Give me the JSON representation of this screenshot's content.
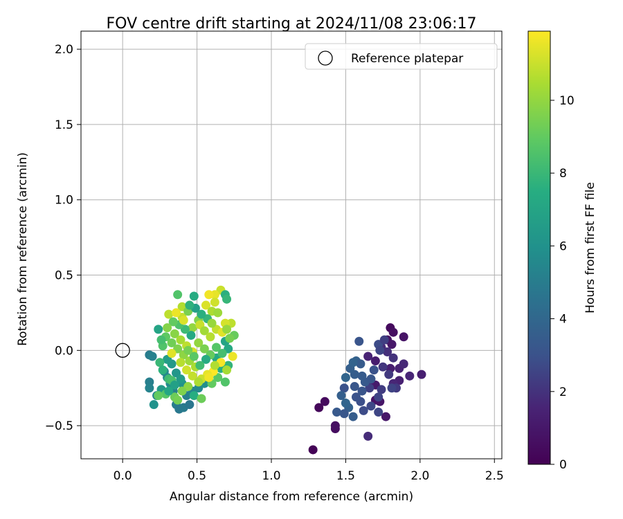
{
  "chart_data": {
    "type": "scatter",
    "title": "FOV centre drift starting at 2024/11/08 23:06:17",
    "xlabel": "Angular distance from reference (arcmin)",
    "ylabel": "Rotation from reference (arcmin)",
    "colorbar_label": "Hours from first FF file",
    "xlim": [
      -0.28,
      2.55
    ],
    "ylim": [
      -0.72,
      2.12
    ],
    "xticks": [
      0.0,
      0.5,
      1.0,
      1.5,
      2.0,
      2.5
    ],
    "xtick_labels": [
      "0.0",
      "0.5",
      "1.0",
      "1.5",
      "2.0",
      "2.5"
    ],
    "yticks": [
      -0.5,
      0.0,
      0.5,
      1.0,
      1.5,
      2.0
    ],
    "ytick_labels": [
      "−0.5",
      "0.0",
      "0.5",
      "1.0",
      "1.5",
      "2.0"
    ],
    "colorbar_range": [
      0,
      11.9
    ],
    "colorbar_ticks": [
      0,
      2,
      4,
      6,
      8,
      10
    ],
    "colorbar_tick_labels": [
      "0",
      "2",
      "4",
      "6",
      "8",
      "10"
    ],
    "colormap": "viridis",
    "grid": true,
    "legend": {
      "placement": "top-right",
      "entries": [
        {
          "label": "Reference platepar",
          "marker": "open-circle"
        }
      ]
    },
    "reference_point": {
      "x": 0.0,
      "y": 0.0,
      "label": "Reference platepar"
    },
    "points": [
      {
        "x": 1.28,
        "y": -0.66,
        "t": 0.1
      },
      {
        "x": 1.32,
        "y": -0.38,
        "t": 0.3
      },
      {
        "x": 1.36,
        "y": -0.34,
        "t": 0.4
      },
      {
        "x": 1.43,
        "y": -0.52,
        "t": 0.5
      },
      {
        "x": 1.43,
        "y": -0.5,
        "t": 0.6
      },
      {
        "x": 1.7,
        "y": -0.33,
        "t": 0.8
      },
      {
        "x": 1.73,
        "y": -0.34,
        "t": 0.9
      },
      {
        "x": 1.77,
        "y": -0.44,
        "t": 1.0
      },
      {
        "x": 1.7,
        "y": -0.23,
        "t": 1.1
      },
      {
        "x": 1.66,
        "y": -0.22,
        "t": 1.2
      },
      {
        "x": 1.8,
        "y": -0.12,
        "t": 1.3
      },
      {
        "x": 1.86,
        "y": -0.2,
        "t": 1.4
      },
      {
        "x": 1.86,
        "y": -0.12,
        "t": 1.5
      },
      {
        "x": 2.01,
        "y": -0.16,
        "t": 1.3
      },
      {
        "x": 1.93,
        "y": -0.17,
        "t": 1.6
      },
      {
        "x": 1.89,
        "y": -0.09,
        "t": 1.7
      },
      {
        "x": 1.8,
        "y": 0.15,
        "t": 0.4
      },
      {
        "x": 1.82,
        "y": 0.12,
        "t": 0.6
      },
      {
        "x": 1.78,
        "y": 0.07,
        "t": 0.7
      },
      {
        "x": 1.89,
        "y": 0.09,
        "t": 0.8
      },
      {
        "x": 1.81,
        "y": 0.04,
        "t": 1.0
      },
      {
        "x": 1.7,
        "y": -0.07,
        "t": 1.2
      },
      {
        "x": 1.65,
        "y": -0.04,
        "t": 1.5
      },
      {
        "x": 1.74,
        "y": 0.02,
        "t": 1.8
      },
      {
        "x": 1.78,
        "y": -0.01,
        "t": 1.9
      },
      {
        "x": 1.82,
        "y": -0.05,
        "t": 2.0
      },
      {
        "x": 1.75,
        "y": -0.11,
        "t": 2.1
      },
      {
        "x": 1.79,
        "y": -0.16,
        "t": 2.2
      },
      {
        "x": 1.82,
        "y": -0.22,
        "t": 1.6
      },
      {
        "x": 1.74,
        "y": -0.26,
        "t": 2.3
      },
      {
        "x": 1.66,
        "y": -0.25,
        "t": 2.4
      },
      {
        "x": 1.72,
        "y": -0.31,
        "t": 2.5
      },
      {
        "x": 1.72,
        "y": -0.41,
        "t": 2.6
      },
      {
        "x": 1.65,
        "y": -0.57,
        "t": 1.8
      },
      {
        "x": 1.67,
        "y": -0.37,
        "t": 2.7
      },
      {
        "x": 1.62,
        "y": -0.4,
        "t": 2.8
      },
      {
        "x": 1.6,
        "y": -0.34,
        "t": 2.9
      },
      {
        "x": 1.57,
        "y": -0.31,
        "t": 3.0
      },
      {
        "x": 1.61,
        "y": -0.27,
        "t": 3.1
      },
      {
        "x": 1.56,
        "y": -0.24,
        "t": 3.2
      },
      {
        "x": 1.63,
        "y": -0.21,
        "t": 3.3
      },
      {
        "x": 1.61,
        "y": -0.17,
        "t": 3.4
      },
      {
        "x": 1.56,
        "y": -0.16,
        "t": 3.5
      },
      {
        "x": 1.53,
        "y": -0.12,
        "t": 3.6
      },
      {
        "x": 1.57,
        "y": -0.07,
        "t": 3.7
      },
      {
        "x": 1.6,
        "y": -0.09,
        "t": 3.4
      },
      {
        "x": 1.67,
        "y": -0.19,
        "t": 3.2
      },
      {
        "x": 1.69,
        "y": -0.13,
        "t": 3.0
      },
      {
        "x": 1.72,
        "y": 0.04,
        "t": 2.8
      },
      {
        "x": 1.73,
        "y": 0.0,
        "t": 2.6
      },
      {
        "x": 1.55,
        "y": -0.08,
        "t": 3.8
      },
      {
        "x": 1.5,
        "y": -0.18,
        "t": 3.9
      },
      {
        "x": 1.49,
        "y": -0.25,
        "t": 3.0
      },
      {
        "x": 1.55,
        "y": -0.44,
        "t": 3.5
      },
      {
        "x": 1.52,
        "y": -0.38,
        "t": 3.7
      },
      {
        "x": 1.49,
        "y": -0.42,
        "t": 3.2
      },
      {
        "x": 1.44,
        "y": -0.41,
        "t": 3.3
      },
      {
        "x": 1.47,
        "y": -0.3,
        "t": 3.6
      },
      {
        "x": 1.5,
        "y": -0.35,
        "t": 3.9
      },
      {
        "x": 1.59,
        "y": 0.06,
        "t": 3.1
      },
      {
        "x": 1.76,
        "y": 0.07,
        "t": 2.4
      },
      {
        "x": 1.84,
        "y": -0.25,
        "t": 2.2
      },
      {
        "x": 1.81,
        "y": -0.25,
        "t": 2.5
      },
      {
        "x": 0.18,
        "y": -0.03,
        "t": 5.0
      },
      {
        "x": 0.2,
        "y": -0.04,
        "t": 5.2
      },
      {
        "x": 0.18,
        "y": -0.21,
        "t": 5.1
      },
      {
        "x": 0.18,
        "y": -0.25,
        "t": 5.3
      },
      {
        "x": 0.23,
        "y": -0.3,
        "t": 5.4
      },
      {
        "x": 0.21,
        "y": -0.36,
        "t": 6.0
      },
      {
        "x": 0.26,
        "y": -0.26,
        "t": 6.4
      },
      {
        "x": 0.28,
        "y": -0.14,
        "t": 5.5
      },
      {
        "x": 0.3,
        "y": -0.18,
        "t": 5.6
      },
      {
        "x": 0.32,
        "y": -0.22,
        "t": 5.7
      },
      {
        "x": 0.34,
        "y": -0.27,
        "t": 5.2
      },
      {
        "x": 0.36,
        "y": -0.36,
        "t": 5.0
      },
      {
        "x": 0.38,
        "y": -0.39,
        "t": 4.8
      },
      {
        "x": 0.41,
        "y": -0.38,
        "t": 4.9
      },
      {
        "x": 0.45,
        "y": -0.36,
        "t": 4.7
      },
      {
        "x": 0.43,
        "y": -0.3,
        "t": 5.1
      },
      {
        "x": 0.47,
        "y": -0.27,
        "t": 5.4
      },
      {
        "x": 0.51,
        "y": -0.25,
        "t": 5.6
      },
      {
        "x": 0.55,
        "y": -0.22,
        "t": 5.8
      },
      {
        "x": 0.4,
        "y": -0.22,
        "t": 6.0
      },
      {
        "x": 0.36,
        "y": -0.15,
        "t": 6.2
      },
      {
        "x": 0.33,
        "y": -0.09,
        "t": 6.4
      },
      {
        "x": 0.3,
        "y": -0.06,
        "t": 6.6
      },
      {
        "x": 0.24,
        "y": 0.14,
        "t": 7.0
      },
      {
        "x": 0.27,
        "y": 0.03,
        "t": 8.6
      },
      {
        "x": 0.29,
        "y": -0.29,
        "t": 8.7
      },
      {
        "x": 0.24,
        "y": -0.3,
        "t": 9.0
      },
      {
        "x": 0.31,
        "y": -0.19,
        "t": 8.2
      },
      {
        "x": 0.33,
        "y": -0.2,
        "t": 8.4
      },
      {
        "x": 0.35,
        "y": -0.31,
        "t": 9.2
      },
      {
        "x": 0.37,
        "y": -0.33,
        "t": 9.4
      },
      {
        "x": 0.48,
        "y": -0.3,
        "t": 7.5
      },
      {
        "x": 0.53,
        "y": -0.32,
        "t": 9.2
      },
      {
        "x": 0.6,
        "y": -0.22,
        "t": 9.0
      },
      {
        "x": 0.64,
        "y": -0.18,
        "t": 8.8
      },
      {
        "x": 0.69,
        "y": -0.21,
        "t": 8.6
      },
      {
        "x": 0.71,
        "y": -0.1,
        "t": 7.8
      },
      {
        "x": 0.66,
        "y": -0.12,
        "t": 7.5
      },
      {
        "x": 0.63,
        "y": -0.05,
        "t": 7.2
      },
      {
        "x": 0.69,
        "y": 0.06,
        "t": 7.0
      },
      {
        "x": 0.71,
        "y": 0.01,
        "t": 7.2
      },
      {
        "x": 0.75,
        "y": 0.1,
        "t": 9.1
      },
      {
        "x": 0.73,
        "y": 0.18,
        "t": 10.8
      },
      {
        "x": 0.69,
        "y": 0.18,
        "t": 11.2
      },
      {
        "x": 0.66,
        "y": 0.4,
        "t": 11.0
      },
      {
        "x": 0.69,
        "y": 0.37,
        "t": 7.6
      },
      {
        "x": 0.7,
        "y": 0.34,
        "t": 7.9
      },
      {
        "x": 0.62,
        "y": 0.37,
        "t": 11.5
      },
      {
        "x": 0.58,
        "y": 0.37,
        "t": 11.7
      },
      {
        "x": 0.56,
        "y": 0.3,
        "t": 11.3
      },
      {
        "x": 0.62,
        "y": 0.32,
        "t": 11.1
      },
      {
        "x": 0.6,
        "y": 0.26,
        "t": 10.5
      },
      {
        "x": 0.64,
        "y": 0.25,
        "t": 10.2
      },
      {
        "x": 0.48,
        "y": 0.36,
        "t": 7.4
      },
      {
        "x": 0.37,
        "y": 0.37,
        "t": 8.6
      },
      {
        "x": 0.4,
        "y": 0.29,
        "t": 10.6
      },
      {
        "x": 0.4,
        "y": 0.22,
        "t": 10.9
      },
      {
        "x": 0.31,
        "y": 0.24,
        "t": 10.8
      },
      {
        "x": 0.44,
        "y": 0.26,
        "t": 9.5
      },
      {
        "x": 0.51,
        "y": 0.2,
        "t": 9.7
      },
      {
        "x": 0.47,
        "y": 0.15,
        "t": 10.0
      },
      {
        "x": 0.52,
        "y": 0.17,
        "t": 11.0
      },
      {
        "x": 0.55,
        "y": 0.13,
        "t": 10.3
      },
      {
        "x": 0.59,
        "y": 0.09,
        "t": 10.7
      },
      {
        "x": 0.63,
        "y": 0.14,
        "t": 10.9
      },
      {
        "x": 0.67,
        "y": 0.12,
        "t": 11.4
      },
      {
        "x": 0.7,
        "y": 0.14,
        "t": 10.1
      },
      {
        "x": 0.72,
        "y": 0.08,
        "t": 9.4
      },
      {
        "x": 0.74,
        "y": -0.04,
        "t": 11.6
      },
      {
        "x": 0.7,
        "y": -0.13,
        "t": 10.4
      },
      {
        "x": 0.66,
        "y": -0.08,
        "t": 11.8
      },
      {
        "x": 0.61,
        "y": -0.14,
        "t": 11.9
      },
      {
        "x": 0.57,
        "y": -0.16,
        "t": 11.5
      },
      {
        "x": 0.53,
        "y": -0.19,
        "t": 11.0
      },
      {
        "x": 0.49,
        "y": -0.11,
        "t": 10.5
      },
      {
        "x": 0.45,
        "y": -0.07,
        "t": 10.2
      },
      {
        "x": 0.41,
        "y": -0.03,
        "t": 9.9
      },
      {
        "x": 0.37,
        "y": 0.01,
        "t": 9.6
      },
      {
        "x": 0.33,
        "y": 0.05,
        "t": 9.3
      },
      {
        "x": 0.29,
        "y": 0.09,
        "t": 8.9
      },
      {
        "x": 0.35,
        "y": 0.11,
        "t": 9.8
      },
      {
        "x": 0.39,
        "y": 0.07,
        "t": 10.4
      },
      {
        "x": 0.43,
        "y": 0.03,
        "t": 10.8
      },
      {
        "x": 0.47,
        "y": -0.01,
        "t": 11.2
      },
      {
        "x": 0.51,
        "y": 0.05,
        "t": 10.0
      },
      {
        "x": 0.55,
        "y": 0.01,
        "t": 9.5
      },
      {
        "x": 0.59,
        "y": -0.03,
        "t": 9.1
      },
      {
        "x": 0.63,
        "y": 0.02,
        "t": 8.7
      },
      {
        "x": 0.67,
        "y": -0.02,
        "t": 8.3
      },
      {
        "x": 0.57,
        "y": 0.21,
        "t": 7.9
      },
      {
        "x": 0.53,
        "y": 0.24,
        "t": 7.6
      },
      {
        "x": 0.46,
        "y": 0.1,
        "t": 7.3
      },
      {
        "x": 0.42,
        "y": 0.14,
        "t": 8.1
      },
      {
        "x": 0.38,
        "y": 0.17,
        "t": 8.5
      },
      {
        "x": 0.34,
        "y": 0.19,
        "t": 9.0
      },
      {
        "x": 0.3,
        "y": 0.15,
        "t": 9.7
      },
      {
        "x": 0.26,
        "y": 0.07,
        "t": 8.3
      },
      {
        "x": 0.25,
        "y": -0.08,
        "t": 8.0
      },
      {
        "x": 0.27,
        "y": -0.13,
        "t": 7.7
      },
      {
        "x": 0.39,
        "y": -0.08,
        "t": 10.7
      },
      {
        "x": 0.43,
        "y": -0.13,
        "t": 11.1
      },
      {
        "x": 0.47,
        "y": -0.17,
        "t": 10.9
      },
      {
        "x": 0.51,
        "y": -0.21,
        "t": 10.5
      },
      {
        "x": 0.44,
        "y": -0.24,
        "t": 9.9
      },
      {
        "x": 0.4,
        "y": -0.27,
        "t": 9.6
      },
      {
        "x": 0.39,
        "y": -0.19,
        "t": 6.5
      },
      {
        "x": 0.35,
        "y": -0.23,
        "t": 6.8
      },
      {
        "x": 0.31,
        "y": -0.27,
        "t": 7.1
      },
      {
        "x": 0.49,
        "y": 0.28,
        "t": 6.8
      },
      {
        "x": 0.45,
        "y": 0.3,
        "t": 7.7
      },
      {
        "x": 0.56,
        "y": -0.06,
        "t": 7.4
      },
      {
        "x": 0.52,
        "y": -0.1,
        "t": 8.2
      },
      {
        "x": 0.48,
        "y": -0.04,
        "t": 8.8
      },
      {
        "x": 0.44,
        "y": 0.0,
        "t": 9.4
      },
      {
        "x": 0.6,
        "y": 0.18,
        "t": 10.1
      },
      {
        "x": 0.62,
        "y": -0.1,
        "t": 10.6
      },
      {
        "x": 0.41,
        "y": 0.2,
        "t": 11.3
      },
      {
        "x": 0.36,
        "y": 0.25,
        "t": 11.6
      },
      {
        "x": 0.33,
        "y": -0.02,
        "t": 11.4
      },
      {
        "x": 0.58,
        "y": -0.18,
        "t": 11.7
      }
    ]
  }
}
